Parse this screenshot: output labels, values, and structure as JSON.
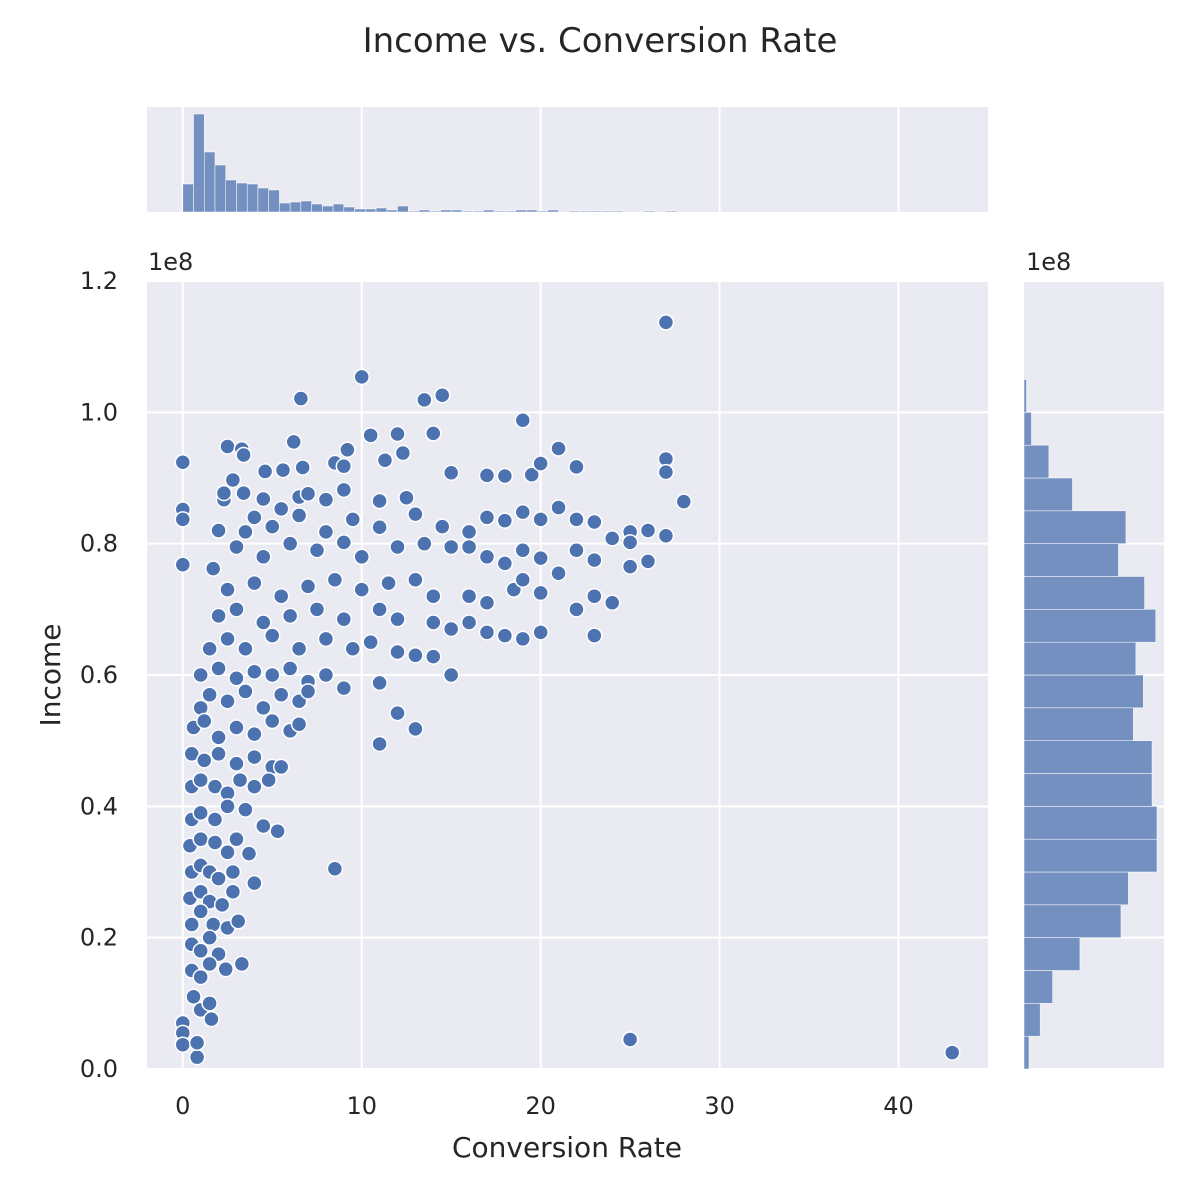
{
  "chart_data": {
    "type": "scatter",
    "title": "Income vs. Conversion Rate",
    "xlabel": "Conversion Rate",
    "ylabel": "Income",
    "y_offset_label": "1e8",
    "marginal_y_offset_label": "1e8",
    "xlim": [
      -2,
      45
    ],
    "ylim": [
      0,
      1.2
    ],
    "xticks": [
      0,
      10,
      20,
      30,
      40
    ],
    "yticks": [
      0.0,
      0.2,
      0.4,
      0.6,
      0.8,
      1.0,
      1.2
    ],
    "ytick_labels": [
      "0.0",
      "0.2",
      "0.4",
      "0.6",
      "0.8",
      "1.0",
      "1.2"
    ],
    "grid": true,
    "point_color": "#4c72b0",
    "background_color": "#eaeaf2",
    "points": [
      [
        27,
        1.137
      ],
      [
        10,
        1.054
      ],
      [
        6.6,
        1.021
      ],
      [
        13.5,
        1.019
      ],
      [
        14.5,
        1.026
      ],
      [
        19,
        0.988
      ],
      [
        0,
        0.924
      ],
      [
        0,
        0.852
      ],
      [
        0,
        0.837
      ],
      [
        0,
        0.768
      ],
      [
        0,
        0.07
      ],
      [
        0,
        0.055
      ],
      [
        0,
        0.037
      ],
      [
        0.8,
        0.018
      ],
      [
        0.8,
        0.04
      ],
      [
        2.5,
        0.948
      ],
      [
        3.3,
        0.944
      ],
      [
        3.4,
        0.935
      ],
      [
        6.2,
        0.955
      ],
      [
        10.5,
        0.965
      ],
      [
        12,
        0.967
      ],
      [
        14,
        0.968
      ],
      [
        21,
        0.945
      ],
      [
        27,
        0.929
      ],
      [
        27,
        0.909
      ],
      [
        28,
        0.864
      ],
      [
        15,
        0.908
      ],
      [
        17,
        0.904
      ],
      [
        18,
        0.903
      ],
      [
        19.5,
        0.905
      ],
      [
        20,
        0.922
      ],
      [
        22,
        0.917
      ],
      [
        4.6,
        0.91
      ],
      [
        5.6,
        0.912
      ],
      [
        6.7,
        0.916
      ],
      [
        8.5,
        0.923
      ],
      [
        9,
        0.918
      ],
      [
        9.2,
        0.943
      ],
      [
        11.3,
        0.927
      ],
      [
        12.3,
        0.938
      ],
      [
        2.3,
        0.867
      ],
      [
        2.3,
        0.877
      ],
      [
        2.8,
        0.897
      ],
      [
        3.4,
        0.877
      ],
      [
        4.5,
        0.868
      ],
      [
        6.5,
        0.871
      ],
      [
        7,
        0.876
      ],
      [
        8,
        0.867
      ],
      [
        9,
        0.882
      ],
      [
        11,
        0.865
      ],
      [
        12.5,
        0.87
      ],
      [
        2,
        0.82
      ],
      [
        3.5,
        0.818
      ],
      [
        4,
        0.84
      ],
      [
        5,
        0.826
      ],
      [
        5.5,
        0.853
      ],
      [
        6.5,
        0.843
      ],
      [
        8,
        0.818
      ],
      [
        9.5,
        0.837
      ],
      [
        11,
        0.825
      ],
      [
        13,
        0.845
      ],
      [
        14.5,
        0.826
      ],
      [
        16,
        0.818
      ],
      [
        17,
        0.84
      ],
      [
        18,
        0.835
      ],
      [
        19,
        0.848
      ],
      [
        20,
        0.837
      ],
      [
        21,
        0.855
      ],
      [
        22,
        0.837
      ],
      [
        23,
        0.833
      ],
      [
        25,
        0.818
      ],
      [
        26,
        0.82
      ],
      [
        27,
        0.812
      ],
      [
        1.7,
        0.762
      ],
      [
        3,
        0.795
      ],
      [
        4.5,
        0.78
      ],
      [
        6,
        0.8
      ],
      [
        7.5,
        0.79
      ],
      [
        9,
        0.802
      ],
      [
        10,
        0.78
      ],
      [
        12,
        0.795
      ],
      [
        13.5,
        0.8
      ],
      [
        15,
        0.795
      ],
      [
        16,
        0.795
      ],
      [
        17,
        0.78
      ],
      [
        18,
        0.77
      ],
      [
        19,
        0.79
      ],
      [
        20,
        0.778
      ],
      [
        22,
        0.79
      ],
      [
        23,
        0.775
      ],
      [
        24,
        0.808
      ],
      [
        25,
        0.802
      ],
      [
        26,
        0.773
      ],
      [
        25,
        0.765
      ],
      [
        2.5,
        0.73
      ],
      [
        4,
        0.74
      ],
      [
        5.5,
        0.72
      ],
      [
        7,
        0.735
      ],
      [
        8.5,
        0.745
      ],
      [
        10,
        0.73
      ],
      [
        11.5,
        0.74
      ],
      [
        13,
        0.745
      ],
      [
        14,
        0.72
      ],
      [
        16,
        0.72
      ],
      [
        17,
        0.71
      ],
      [
        18.5,
        0.73
      ],
      [
        19,
        0.745
      ],
      [
        20,
        0.725
      ],
      [
        21,
        0.755
      ],
      [
        22,
        0.7
      ],
      [
        23,
        0.72
      ],
      [
        24,
        0.71
      ],
      [
        2,
        0.69
      ],
      [
        3,
        0.7
      ],
      [
        4.5,
        0.68
      ],
      [
        6,
        0.69
      ],
      [
        7.5,
        0.7
      ],
      [
        9,
        0.685
      ],
      [
        11,
        0.7
      ],
      [
        12,
        0.685
      ],
      [
        14,
        0.68
      ],
      [
        15,
        0.67
      ],
      [
        16,
        0.68
      ],
      [
        17,
        0.665
      ],
      [
        18,
        0.66
      ],
      [
        19,
        0.655
      ],
      [
        20,
        0.665
      ],
      [
        23,
        0.66
      ],
      [
        1.5,
        0.64
      ],
      [
        2.5,
        0.655
      ],
      [
        3.5,
        0.64
      ],
      [
        5,
        0.66
      ],
      [
        6.5,
        0.64
      ],
      [
        8,
        0.655
      ],
      [
        9.5,
        0.64
      ],
      [
        10.5,
        0.65
      ],
      [
        12,
        0.635
      ],
      [
        13,
        0.63
      ],
      [
        14,
        0.628
      ],
      [
        1,
        0.6
      ],
      [
        2,
        0.61
      ],
      [
        3,
        0.595
      ],
      [
        4,
        0.605
      ],
      [
        5,
        0.6
      ],
      [
        6,
        0.61
      ],
      [
        7,
        0.59
      ],
      [
        8,
        0.6
      ],
      [
        9,
        0.58
      ],
      [
        11,
        0.588
      ],
      [
        15,
        0.6
      ],
      [
        1,
        0.55
      ],
      [
        1.5,
        0.57
      ],
      [
        2.5,
        0.56
      ],
      [
        3.5,
        0.575
      ],
      [
        4.5,
        0.55
      ],
      [
        5.5,
        0.57
      ],
      [
        6.5,
        0.56
      ],
      [
        7,
        0.575
      ],
      [
        12,
        0.542
      ],
      [
        11,
        0.495
      ],
      [
        13,
        0.518
      ],
      [
        0.6,
        0.52
      ],
      [
        1.2,
        0.53
      ],
      [
        2,
        0.505
      ],
      [
        3,
        0.52
      ],
      [
        4,
        0.51
      ],
      [
        5,
        0.53
      ],
      [
        6,
        0.515
      ],
      [
        6.5,
        0.525
      ],
      [
        0.5,
        0.48
      ],
      [
        1.2,
        0.47
      ],
      [
        2,
        0.48
      ],
      [
        3,
        0.465
      ],
      [
        4,
        0.475
      ],
      [
        5,
        0.46
      ],
      [
        5.5,
        0.46
      ],
      [
        0.5,
        0.43
      ],
      [
        1,
        0.44
      ],
      [
        1.8,
        0.43
      ],
      [
        2.5,
        0.42
      ],
      [
        3.2,
        0.44
      ],
      [
        4,
        0.43
      ],
      [
        4.8,
        0.44
      ],
      [
        0.5,
        0.38
      ],
      [
        1,
        0.39
      ],
      [
        1.8,
        0.38
      ],
      [
        2.5,
        0.4
      ],
      [
        3.5,
        0.395
      ],
      [
        4.5,
        0.37
      ],
      [
        5.3,
        0.362
      ],
      [
        0.4,
        0.34
      ],
      [
        1,
        0.35
      ],
      [
        1.8,
        0.345
      ],
      [
        2.5,
        0.33
      ],
      [
        3,
        0.35
      ],
      [
        3.7,
        0.328
      ],
      [
        8.5,
        0.305
      ],
      [
        0.5,
        0.3
      ],
      [
        1,
        0.31
      ],
      [
        1.5,
        0.3
      ],
      [
        2,
        0.29
      ],
      [
        2.8,
        0.3
      ],
      [
        4,
        0.283
      ],
      [
        0.4,
        0.26
      ],
      [
        1,
        0.27
      ],
      [
        1.5,
        0.255
      ],
      [
        2.2,
        0.25
      ],
      [
        2.8,
        0.27
      ],
      [
        0.5,
        0.22
      ],
      [
        1,
        0.24
      ],
      [
        1.7,
        0.22
      ],
      [
        2.5,
        0.215
      ],
      [
        3.1,
        0.225
      ],
      [
        0.5,
        0.19
      ],
      [
        1,
        0.18
      ],
      [
        1.5,
        0.2
      ],
      [
        2,
        0.175
      ],
      [
        0.5,
        0.15
      ],
      [
        1,
        0.14
      ],
      [
        1.5,
        0.16
      ],
      [
        2.4,
        0.152
      ],
      [
        3.3,
        0.16
      ],
      [
        0.6,
        0.11
      ],
      [
        1,
        0.09
      ],
      [
        1.5,
        0.1
      ],
      [
        1.6,
        0.076
      ],
      [
        25,
        0.045
      ],
      [
        43,
        0.025
      ]
    ],
    "top_histogram": {
      "bin_edges": [
        0,
        0.6,
        1.2,
        1.8,
        2.4,
        3.0,
        3.6,
        4.2,
        4.8,
        5.4,
        6.0,
        6.6,
        7.2,
        7.8,
        8.4,
        9.0,
        9.6,
        10.2,
        10.8,
        11.4,
        12.0,
        12.6,
        13.2,
        13.8,
        14.4,
        15.0,
        15.6,
        16.2,
        16.8,
        17.4,
        18.0,
        18.6,
        19.2,
        19.8,
        20.4,
        21.0,
        21.6,
        22.2,
        22.8,
        23.4,
        24.0,
        24.6,
        25.2,
        25.8,
        26.4,
        27.0,
        27.6
      ],
      "counts": [
        28,
        98,
        60,
        47,
        32,
        29,
        28,
        24,
        22,
        9,
        10,
        11,
        8,
        6,
        8,
        5,
        3,
        3,
        4,
        2,
        6,
        1,
        2,
        1,
        2,
        2,
        1,
        1,
        2,
        1,
        1,
        2,
        2,
        1,
        2,
        0,
        1,
        1,
        1,
        1,
        1,
        0,
        0,
        1,
        0,
        1
      ]
    },
    "right_histogram": {
      "bin_edges": [
        0.0,
        0.05,
        0.1,
        0.15,
        0.2,
        0.25,
        0.3,
        0.35,
        0.4,
        0.45,
        0.5,
        0.55,
        0.6,
        0.65,
        0.7,
        0.75,
        0.8,
        0.85,
        0.9,
        0.95,
        1.0,
        1.05
      ],
      "counts": [
        4,
        13,
        23,
        45,
        78,
        84,
        107,
        107,
        103,
        103,
        88,
        96,
        90,
        106,
        97,
        76,
        82,
        39,
        20,
        6,
        2
      ]
    }
  }
}
